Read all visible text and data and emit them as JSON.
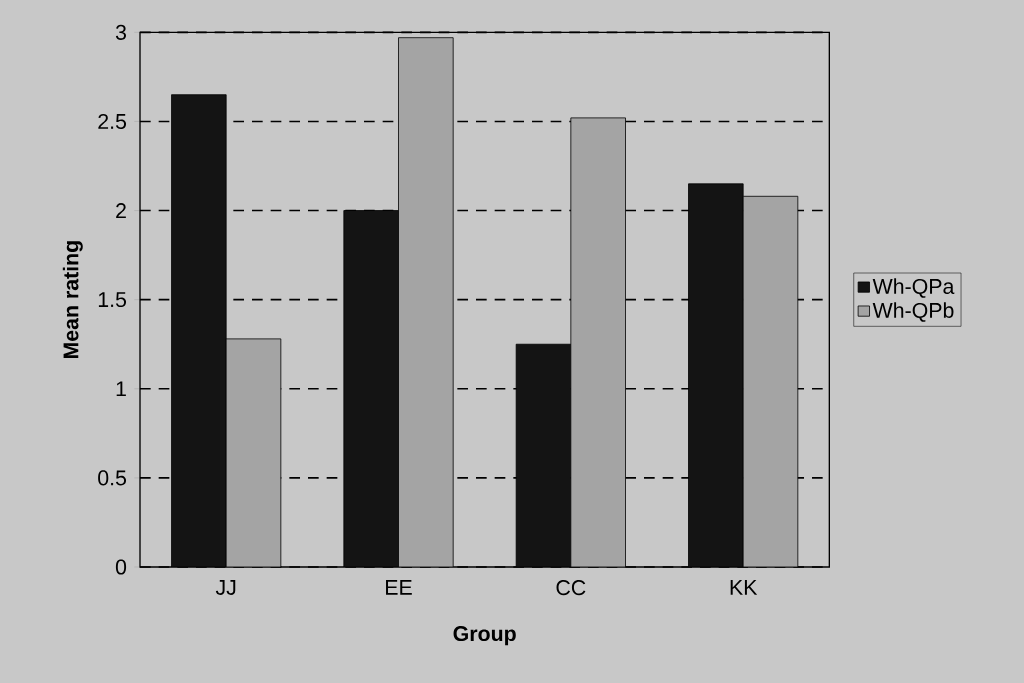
{
  "chart_data": {
    "type": "bar",
    "xlabel": "Group",
    "ylabel": "Mean rating",
    "categories": [
      "JJ",
      "EE",
      "CC",
      "KK"
    ],
    "series": [
      {
        "name": "Wh-QPa",
        "color": "#141414",
        "values": [
          2.65,
          2.0,
          1.25,
          2.15
        ]
      },
      {
        "name": "Wh-QPb",
        "color": "#a4a4a4",
        "values": [
          1.28,
          2.97,
          2.52,
          2.08
        ]
      }
    ],
    "ylim": [
      0,
      3
    ],
    "yticks": [
      0,
      0.5,
      1,
      1.5,
      2,
      2.5,
      3
    ],
    "grid": "y",
    "legend": "right"
  }
}
